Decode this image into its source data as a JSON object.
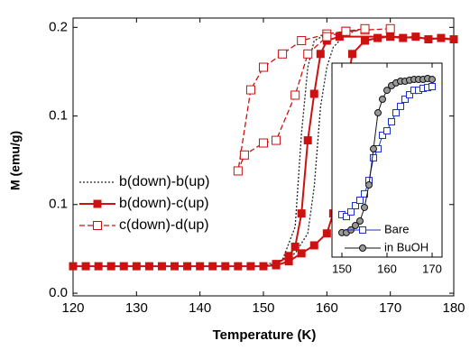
{
  "chart_data": [
    {
      "type": "line",
      "xlabel": "Temperature (K)",
      "ylabel": "M (emu/g)",
      "xlim": [
        120,
        180
      ],
      "xticks": [
        120,
        130,
        140,
        150,
        160,
        170,
        180
      ],
      "ylim": [
        -0.002,
        0.207
      ],
      "yticks": [
        {
          "value": 0,
          "label": "0.0"
        },
        {
          "value": 0.0667,
          "label": "0.1"
        },
        {
          "value": 0.1333,
          "label": "0.1"
        },
        0.2
      ],
      "legend": "left",
      "series": [
        {
          "name": "b(down)-b(up)",
          "color": "#222222",
          "dash": "dotted",
          "marker": "none",
          "x": [
            150,
            152,
            155,
            157,
            158,
            159,
            160,
            161,
            163,
            165,
            165,
            160,
            158,
            157,
            156,
            155,
            153,
            150
          ],
          "values": [
            0.0205,
            0.022,
            0.03,
            0.045,
            0.08,
            0.14,
            0.17,
            0.185,
            0.195,
            0.198,
            0.198,
            0.195,
            0.19,
            0.17,
            0.12,
            0.05,
            0.025,
            0.021
          ]
        },
        {
          "name": "b(down)-c(up)",
          "color": "#cc1111",
          "dash": "solid",
          "marker": "square",
          "x": [
            120,
            122,
            124,
            126,
            128,
            130,
            132,
            134,
            136,
            138,
            140,
            142,
            144,
            146,
            148,
            150,
            152,
            154,
            156,
            158,
            160,
            161,
            162,
            163,
            164,
            166,
            168,
            170,
            172,
            174,
            176,
            178,
            180,
            170,
            162,
            160,
            159,
            158,
            157,
            156,
            155,
            154,
            152
          ],
          "values": [
            0.0203,
            0.0203,
            0.0203,
            0.0203,
            0.0203,
            0.0203,
            0.0203,
            0.0203,
            0.0203,
            0.0203,
            0.0203,
            0.0203,
            0.0203,
            0.0203,
            0.0203,
            0.0203,
            0.021,
            0.024,
            0.03,
            0.036,
            0.045,
            0.06,
            0.1,
            0.15,
            0.18,
            0.19,
            0.192,
            0.193,
            0.192,
            0.193,
            0.191,
            0.192,
            0.191,
            0.193,
            0.193,
            0.19,
            0.18,
            0.15,
            0.115,
            0.06,
            0.035,
            0.028,
            0.022
          ]
        },
        {
          "name": "c(down)-d(up)",
          "color": "#cc1111",
          "dash": "dashed",
          "marker": "open-square",
          "x": [
            170,
            166,
            163,
            160,
            156,
            153,
            150,
            148,
            146,
            147,
            150,
            152,
            155,
            157,
            160,
            163,
            166
          ],
          "values": [
            0.199,
            0.198,
            0.197,
            0.195,
            0.19,
            0.18,
            0.17,
            0.153,
            0.092,
            0.104,
            0.113,
            0.115,
            0.149,
            0.18,
            0.193,
            0.197,
            0.199
          ]
        }
      ]
    },
    {
      "type": "line",
      "xlim": [
        147.8,
        172.2
      ],
      "xticks": [
        150,
        160,
        170
      ],
      "ylim": [
        0,
        1
      ],
      "legend": "lower right",
      "series": [
        {
          "name": "Bare",
          "color": "#1a2fcc",
          "dash": "solid",
          "marker": "open-square",
          "x": [
            150,
            151,
            152,
            153,
            154,
            155,
            156,
            157,
            158,
            159,
            160,
            161,
            162,
            163,
            164,
            165,
            166,
            167,
            168,
            169,
            170
          ],
          "values": [
            0.219,
            0.209,
            0.233,
            0.265,
            0.293,
            0.326,
            0.395,
            0.512,
            0.558,
            0.628,
            0.651,
            0.698,
            0.744,
            0.777,
            0.814,
            0.837,
            0.86,
            0.86,
            0.87,
            0.874,
            0.879
          ]
        },
        {
          "name": "in BuOH",
          "color": "#111111",
          "dash": "solid",
          "marker": "circle",
          "x": [
            150,
            151,
            152,
            153,
            154,
            155,
            156,
            157,
            158,
            159,
            160,
            161,
            162,
            163,
            164,
            165,
            166,
            167,
            168,
            169,
            170
          ],
          "values": [
            0.126,
            0.126,
            0.14,
            0.163,
            0.186,
            0.256,
            0.372,
            0.558,
            0.744,
            0.814,
            0.86,
            0.884,
            0.898,
            0.907,
            0.907,
            0.912,
            0.916,
            0.916,
            0.916,
            0.921,
            0.916
          ]
        }
      ]
    }
  ]
}
